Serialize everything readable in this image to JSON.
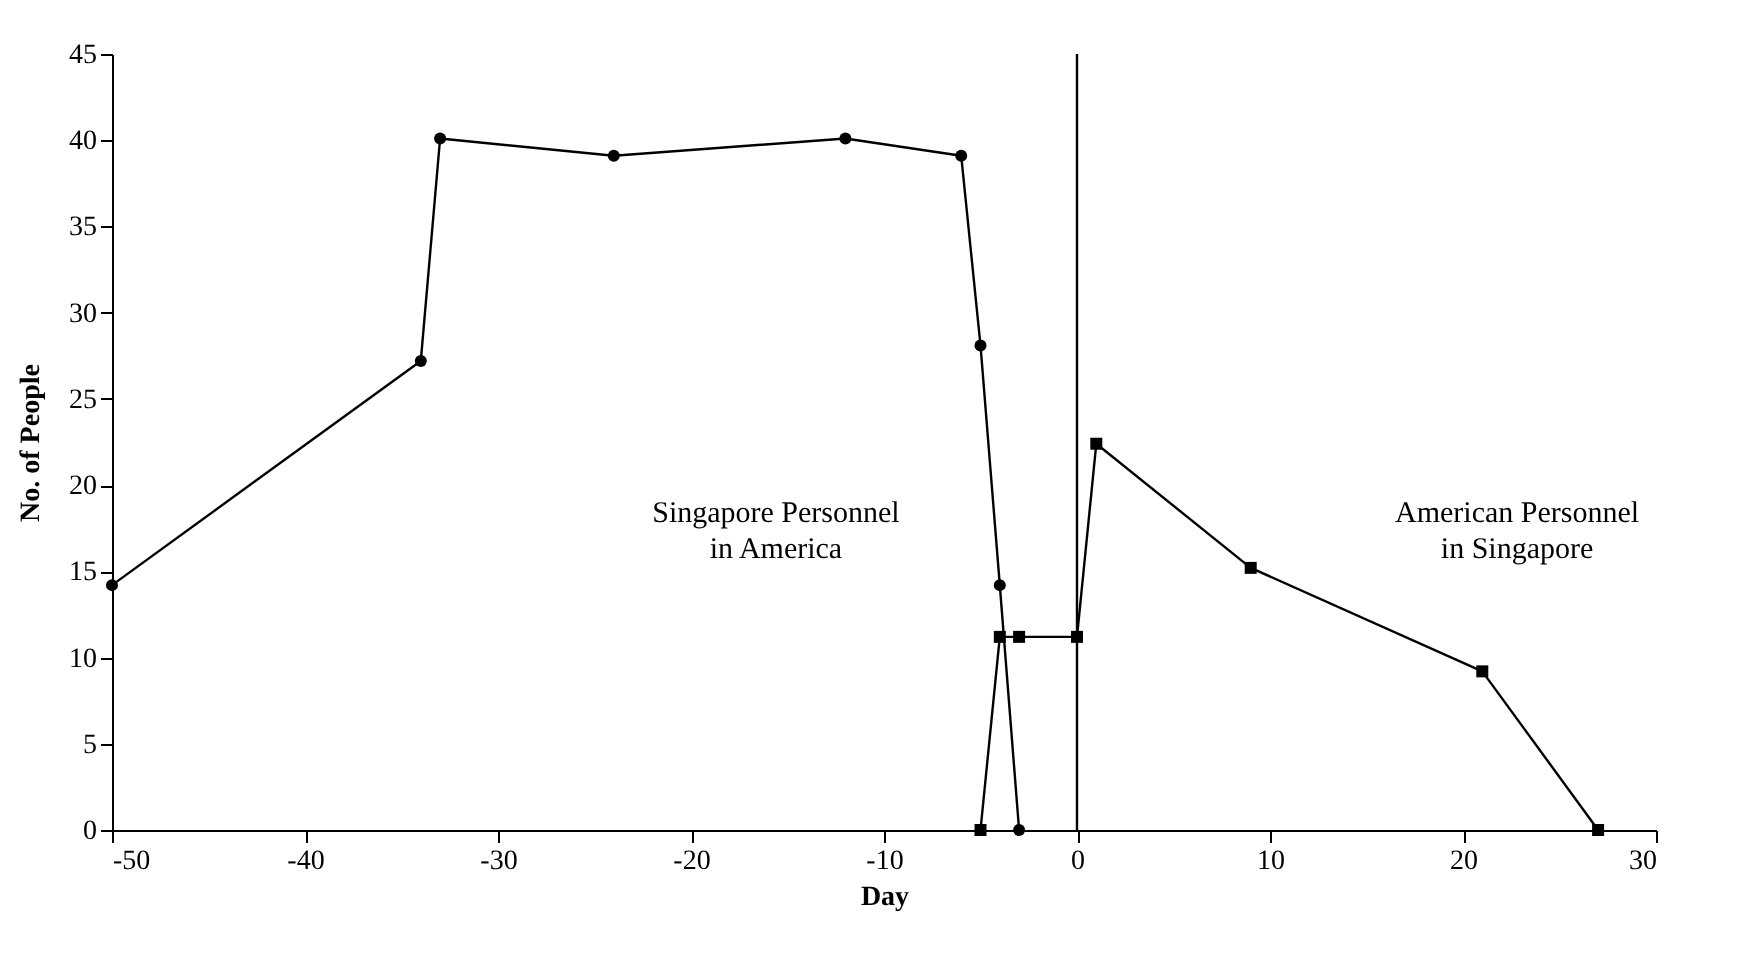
{
  "chart_data": {
    "type": "line",
    "xlabel": "Day",
    "ylabel": "No. of People",
    "xlim": [
      -50,
      30
    ],
    "xticks": [
      -50,
      -40,
      -30,
      -20,
      -10,
      0,
      10,
      20,
      30
    ],
    "ylim": [
      0,
      45
    ],
    "yticks": [
      0,
      5,
      10,
      15,
      20,
      25,
      30,
      35,
      40,
      45
    ],
    "grid": false,
    "series": [
      {
        "color": "#000000",
        "marker": "circle",
        "x": [
          -50,
          -34,
          -33,
          -24,
          -12,
          -6,
          -5,
          -4,
          -3
        ],
        "values": [
          14.2,
          27.2,
          40.1,
          39.1,
          40.1,
          39.1,
          28.1,
          14.2,
          0
        ]
      },
      {
        "color": "#000000",
        "marker": "square",
        "x": [
          -5,
          -4,
          -3,
          0,
          1,
          9,
          21,
          27
        ],
        "values": [
          0,
          11.2,
          11.2,
          11.2,
          22.4,
          15.2,
          9.2,
          0
        ]
      }
    ],
    "ref_lines": [
      {
        "axis": "x",
        "value": 0,
        "color": "#000000"
      }
    ],
    "annotations": [
      "Singapore Personnel\nin America",
      "American Personnel\nin Singapore"
    ]
  }
}
